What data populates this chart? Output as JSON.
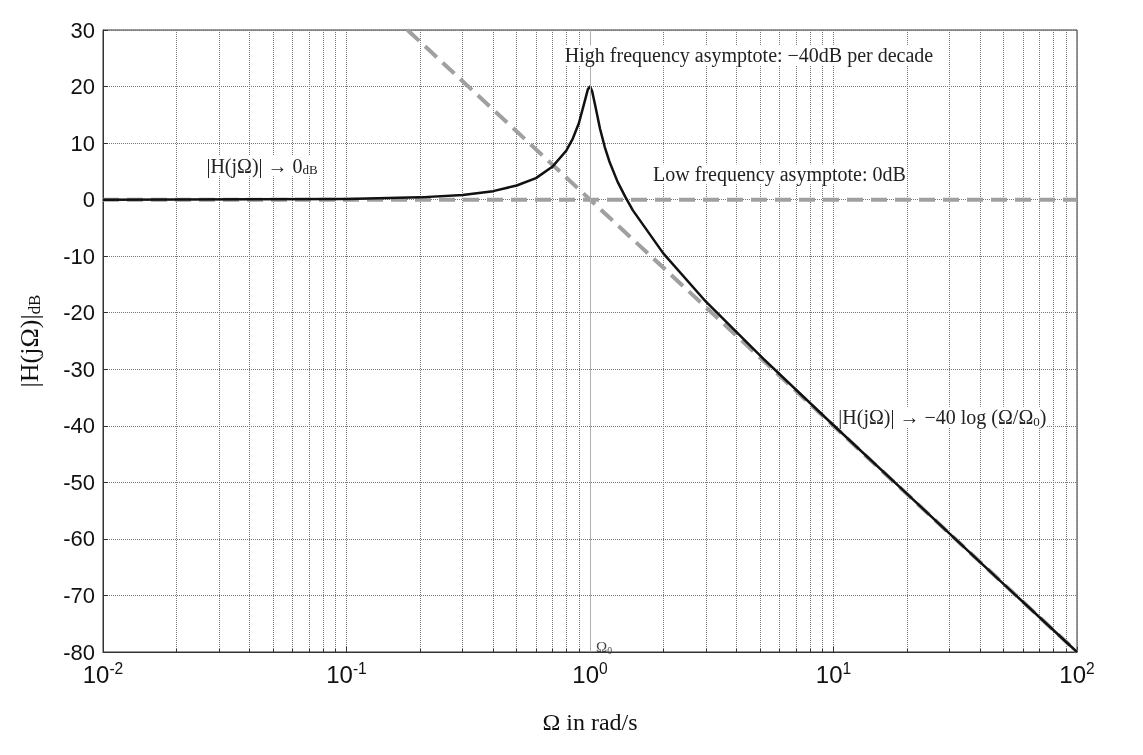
{
  "chart_data": {
    "type": "line",
    "xlabel": "Ω in rad/s",
    "ylabel": "|H(jΩ)|$_{dB}$",
    "log": "x",
    "grid": true,
    "marker": "none",
    "xlim": [
      0.01,
      100
    ],
    "ylim": [
      -80,
      30
    ],
    "xticks": [
      {
        "value": 0.01,
        "label": "10$^{-2}$"
      },
      {
        "value": 0.1,
        "label": "10$^{-1}$"
      },
      {
        "value": 1,
        "label": "10$^{0}$"
      },
      {
        "value": 10,
        "label": "10$^{1}$"
      },
      {
        "value": 100,
        "label": "10$^{2}$"
      }
    ],
    "yticks": [
      -80,
      -70,
      -60,
      -50,
      -40,
      -30,
      -20,
      -10,
      0,
      10,
      20,
      30
    ],
    "series": [
      {
        "color": "#a0a0a0",
        "line_style": "dashed",
        "x": [
          0.01,
          100
        ],
        "values": [
          0,
          0
        ]
      },
      {
        "color": "#a0a0a0",
        "line_style": "dashed",
        "x": [
          0.178,
          100
        ],
        "values": [
          30,
          -80
        ]
      },
      {
        "color": "#111111",
        "line_style": "solid",
        "x": [
          0.01,
          0.1,
          0.2,
          0.3,
          0.4,
          0.5,
          0.6,
          0.7,
          0.8,
          0.85,
          0.9,
          0.95,
          0.98,
          1,
          1.02,
          1.05,
          1.1,
          1.15,
          1.2,
          1.3,
          1.4,
          1.5,
          2,
          3,
          5,
          10,
          20,
          50,
          100
        ],
        "values": [
          0,
          0.1,
          0.4,
          0.8,
          1.5,
          2.5,
          3.8,
          5.8,
          8.7,
          10.8,
          13.5,
          17.3,
          19.5,
          20,
          19.2,
          16.7,
          12.5,
          9.3,
          6.8,
          3.1,
          0.4,
          -1.9,
          -9.5,
          -18.1,
          -27.6,
          -39.9,
          -52,
          -68,
          -80
        ]
      }
    ],
    "ref_lines": [
      {
        "axis": "x",
        "value": 1,
        "label": "Ω$_{0}$",
        "color": "#b0b0b0"
      }
    ],
    "annotations": [
      "High frequency asymptote: −40dB per decade",
      "Low frequency asymptote: 0dB",
      "|H(jΩ)| → 0$_{dB}$",
      "|H(jΩ)| → −40 log (Ω/Ω$_{0}$)"
    ]
  }
}
